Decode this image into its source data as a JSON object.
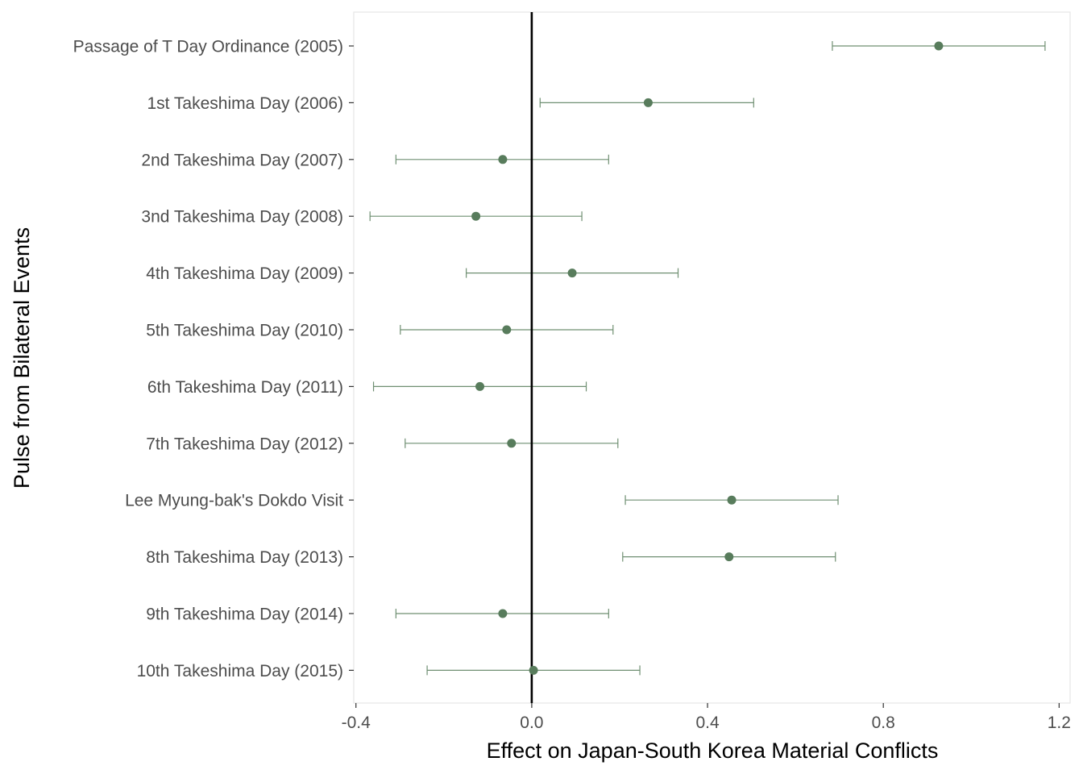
{
  "chart_data": {
    "type": "scatter",
    "subtype": "coefficient-plot-with-error-bars",
    "orientation": "horizontal",
    "title": "",
    "xlabel": "Effect on Japan-South Korea Material Conflicts",
    "ylabel": "Pulse from Bilateral Events",
    "xlim": [
      -0.405,
      1.225
    ],
    "xticks": [
      -0.4,
      0.0,
      0.4,
      0.8,
      1.2
    ],
    "xtick_labels": [
      "-0.4",
      "0.0",
      "0.4",
      "0.8",
      "1.2"
    ],
    "reference_line": {
      "x": 0.0,
      "color": "#000000"
    },
    "grid": false,
    "legend": "none",
    "point_color": "#587c5c",
    "errorbar_color": "#6f8f72",
    "categories": [
      "Passage of T Day Ordinance (2005)",
      "1st Takeshima Day (2006)",
      "2nd Takeshima Day (2007)",
      "3nd Takeshima Day (2008)",
      "4th Takeshima Day (2009)",
      "5th Takeshima Day (2010)",
      "6th Takeshima Day (2011)",
      "7th Takeshima Day (2012)",
      "Lee Myung-bak's Dokdo Visit",
      "8th Takeshima Day (2013)",
      "9th Takeshima Day (2014)",
      "10th Takeshima Day (2015)"
    ],
    "series": [
      {
        "estimates": [
          0.926,
          0.265,
          -0.066,
          -0.127,
          0.092,
          -0.057,
          -0.118,
          -0.046,
          0.455,
          0.449,
          -0.066,
          0.004
        ],
        "lower": [
          0.684,
          0.019,
          -0.309,
          -0.368,
          -0.149,
          -0.299,
          -0.36,
          -0.288,
          0.213,
          0.207,
          -0.309,
          -0.238
        ],
        "upper": [
          1.168,
          0.505,
          0.175,
          0.114,
          0.333,
          0.185,
          0.124,
          0.196,
          0.697,
          0.691,
          0.175,
          0.246
        ]
      }
    ]
  }
}
